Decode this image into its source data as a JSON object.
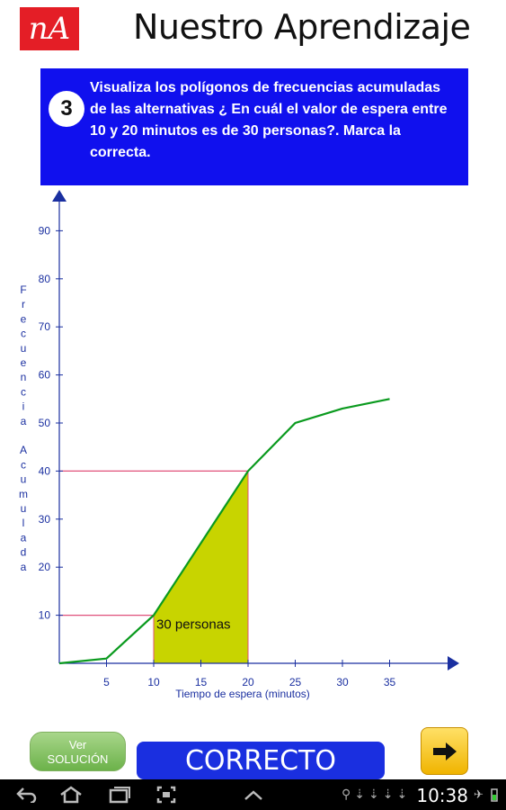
{
  "header": {
    "logo_text": "nA",
    "title": "Nuestro Aprendizaje"
  },
  "question": {
    "number": "3",
    "text": "Visualiza los polígonos de frecuencias acumuladas de las alternativas ¿ En cuál  el valor de espera entre 10 y 20 minutos es de 30 personas?. Marca la correcta."
  },
  "chart_data": {
    "type": "line",
    "xlabel": "Tiempo de espera (minutos)",
    "ylabel": "Frecuencia Acumulada",
    "x_ticks": [
      5,
      10,
      15,
      20,
      25,
      30,
      35
    ],
    "y_ticks": [
      10,
      20,
      30,
      40,
      50,
      60,
      70,
      80,
      90
    ],
    "xlim": [
      0,
      40
    ],
    "ylim": [
      0,
      95
    ],
    "series": [
      {
        "x": [
          0,
          5,
          10,
          20,
          25,
          30,
          35
        ],
        "y": [
          0,
          1,
          10,
          40,
          50,
          53,
          55
        ]
      }
    ],
    "shaded_interval": [
      10,
      20
    ],
    "reference_lines_y": [
      10,
      40
    ],
    "annotation": "30 personas",
    "colors": {
      "line": "#0a9a1e",
      "fill": "#c8d400",
      "reference": "#e0507a",
      "axis": "#1a2fa0"
    }
  },
  "buttons": {
    "ver_line1": "Ver",
    "ver_line2": "SOLUCIÓN",
    "correcto": "CORRECTO",
    "next_icon": "arrow-right-icon"
  },
  "statusbar": {
    "time": "10:38"
  }
}
